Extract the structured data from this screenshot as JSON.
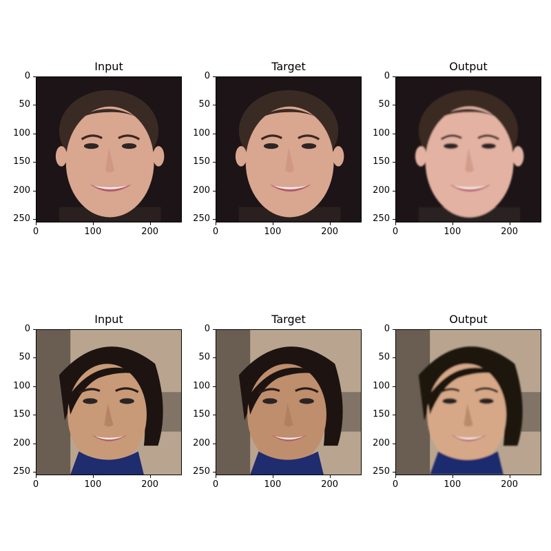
{
  "figure": {
    "panels": [
      {
        "title": "Input",
        "row": 0,
        "col": 0,
        "scene": "face-1",
        "variant": "input"
      },
      {
        "title": "Target",
        "row": 0,
        "col": 1,
        "scene": "face-1",
        "variant": "target"
      },
      {
        "title": "Output",
        "row": 0,
        "col": 2,
        "scene": "face-1",
        "variant": "output"
      },
      {
        "title": "Input",
        "row": 1,
        "col": 0,
        "scene": "face-2",
        "variant": "input"
      },
      {
        "title": "Target",
        "row": 1,
        "col": 1,
        "scene": "face-2",
        "variant": "target"
      },
      {
        "title": "Output",
        "row": 1,
        "col": 2,
        "scene": "face-2",
        "variant": "output"
      }
    ],
    "axes": {
      "x_ticks": [
        "0",
        "100",
        "200"
      ],
      "y_ticks": [
        "0",
        "50",
        "100",
        "150",
        "200",
        "250"
      ],
      "x_range": [
        0,
        256
      ],
      "y_range": [
        0,
        256
      ]
    },
    "colors": {
      "face1_background": "#1c1416",
      "face1_hair": "#3a2a24",
      "face1_skin": "#d9a690",
      "face2_background": "#b9a58f",
      "face2_hair": "#1d1411",
      "face2_skin": "#c99a78",
      "face2_top": "#1f2c6e",
      "lips": "#b85a6a"
    }
  }
}
